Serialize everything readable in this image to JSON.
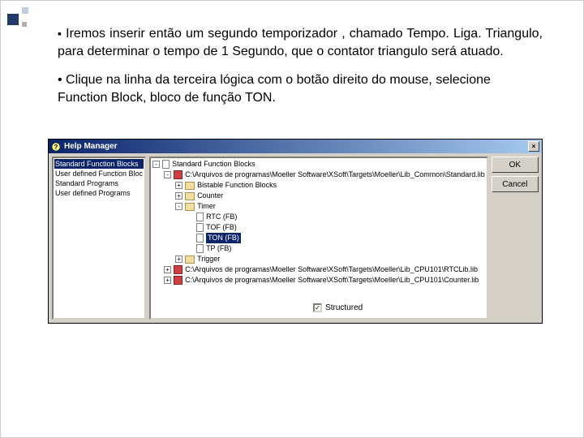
{
  "slide": {
    "para1": "Iremos inserir então um segundo temporizador , chamado Tempo. Liga. Triangulo, para determinar o tempo de 1 Segundo, que o contator triangulo será atuado.",
    "para2": "• Clique na linha da terceira lógica com o botão direito do mouse, selecione Function Block, bloco de função TON."
  },
  "window": {
    "title": "Help Manager",
    "buttons": {
      "ok": "OK",
      "cancel": "Cancel"
    },
    "structured_label": "Structured",
    "structured_checked": true,
    "categories": [
      {
        "label": "Standard Function Blocks",
        "selected": true
      },
      {
        "label": "User defined Function Bloc",
        "selected": false
      },
      {
        "label": "Standard Programs",
        "selected": false
      },
      {
        "label": "User defined Programs",
        "selected": false
      }
    ],
    "tree": [
      {
        "indent": 0,
        "toggle": "-",
        "icon": "page",
        "label": "Standard Function Blocks",
        "selected": false
      },
      {
        "indent": 1,
        "toggle": "-",
        "icon": "book",
        "label": "C:\\Arquivos de programas\\Moeller Software\\XSoft\\Targets\\Moeller\\Lib_Common\\Standard.lib",
        "selected": false
      },
      {
        "indent": 2,
        "toggle": "+",
        "icon": "closed",
        "label": "Bistable Function Blocks",
        "selected": false
      },
      {
        "indent": 2,
        "toggle": "+",
        "icon": "closed",
        "label": "Counter",
        "selected": false
      },
      {
        "indent": 2,
        "toggle": "-",
        "icon": "closed",
        "label": "Timer",
        "selected": false
      },
      {
        "indent": 3,
        "toggle": "",
        "icon": "page",
        "label": "RTC (FB)",
        "selected": false
      },
      {
        "indent": 3,
        "toggle": "",
        "icon": "page",
        "label": "TOF (FB)",
        "selected": false
      },
      {
        "indent": 3,
        "toggle": "",
        "icon": "page",
        "label": "TON (FB)",
        "selected": true
      },
      {
        "indent": 3,
        "toggle": "",
        "icon": "page",
        "label": "TP (FB)",
        "selected": false
      },
      {
        "indent": 2,
        "toggle": "+",
        "icon": "closed",
        "label": "Trigger",
        "selected": false
      },
      {
        "indent": 1,
        "toggle": "+",
        "icon": "book",
        "label": "C:\\Arquivos de programas\\Moeller Software\\XSoft\\Targets\\Moeller\\Lib_CPU101\\RTCLib.lib",
        "selected": false
      },
      {
        "indent": 1,
        "toggle": "+",
        "icon": "book",
        "label": "C:\\Arquivos de programas\\Moeller Software\\XSoft\\Targets\\Moeller\\Lib_CPU101\\Counter.lib",
        "selected": false
      }
    ]
  },
  "colors": {
    "titlebar_from": "#0a246a",
    "titlebar_to": "#a6caf0",
    "select_bg": "#0a246a",
    "win_bg": "#d4d0c8"
  }
}
